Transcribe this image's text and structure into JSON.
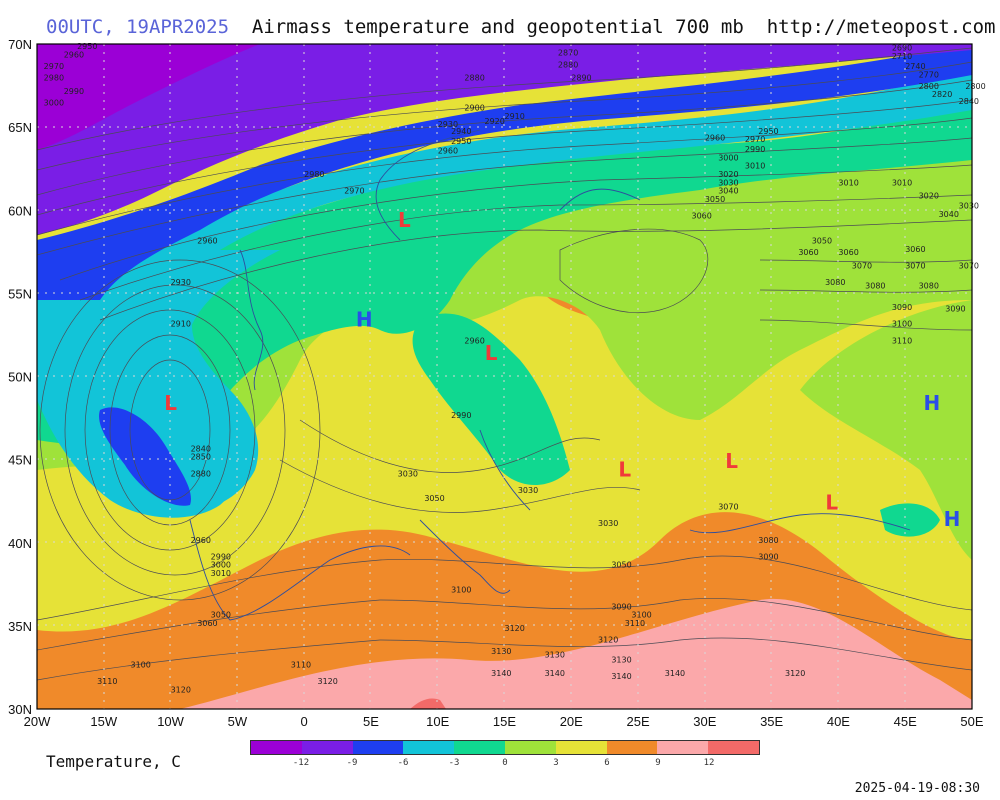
{
  "header": {
    "time_label": "00UTC, 19APR2025",
    "title": "Airmass temperature and geopotential 700 mb",
    "url": "http://meteopost.com"
  },
  "map": {
    "lat_labels": [
      "70N",
      "65N",
      "60N",
      "55N",
      "50N",
      "45N",
      "40N",
      "35N",
      "30N"
    ],
    "lon_labels": [
      "20W",
      "15W",
      "10W",
      "5W",
      "0",
      "5E",
      "10E",
      "15E",
      "20E",
      "25E",
      "30E",
      "35E",
      "40E",
      "45E",
      "50E"
    ],
    "pressure_centers": [
      {
        "type": "L",
        "label": "L",
        "lon": -10,
        "lat": 48
      },
      {
        "type": "L",
        "label": "L",
        "lon": 7.5,
        "lat": 59
      },
      {
        "type": "L",
        "label": "L",
        "lon": 14,
        "lat": 51
      },
      {
        "type": "L",
        "label": "L",
        "lon": 24,
        "lat": 44
      },
      {
        "type": "L",
        "label": "L",
        "lon": 32,
        "lat": 44.5
      },
      {
        "type": "L",
        "label": "L",
        "lon": 39.5,
        "lat": 42
      },
      {
        "type": "H",
        "label": "H",
        "lon": 4.5,
        "lat": 53
      },
      {
        "type": "H",
        "label": "H",
        "lon": 47,
        "lat": 48
      },
      {
        "type": "H",
        "label": "H",
        "lon": 48.5,
        "lat": 41
      }
    ],
    "contour_labels": [
      {
        "t": "2950",
        "lon": -17,
        "lat": 69.7
      },
      {
        "t": "2960",
        "lon": -18,
        "lat": 69.2
      },
      {
        "t": "2970",
        "lon": -19.5,
        "lat": 68.5
      },
      {
        "t": "2980",
        "lon": -19.5,
        "lat": 67.8
      },
      {
        "t": "2990",
        "lon": -18,
        "lat": 67
      },
      {
        "t": "3000",
        "lon": -19.5,
        "lat": 66.3
      },
      {
        "t": "2880",
        "lon": 12,
        "lat": 67.8
      },
      {
        "t": "2900",
        "lon": 12,
        "lat": 66
      },
      {
        "t": "2910",
        "lon": 15,
        "lat": 65.5
      },
      {
        "t": "2920",
        "lon": 13.5,
        "lat": 65.2
      },
      {
        "t": "2930",
        "lon": 10,
        "lat": 65
      },
      {
        "t": "2940",
        "lon": 11,
        "lat": 64.6
      },
      {
        "t": "2950",
        "lon": 11,
        "lat": 64
      },
      {
        "t": "2960",
        "lon": 10,
        "lat": 63.4
      },
      {
        "t": "2970",
        "lon": 3,
        "lat": 61
      },
      {
        "t": "2980",
        "lon": 0,
        "lat": 62
      },
      {
        "t": "2960",
        "lon": -8,
        "lat": 58
      },
      {
        "t": "2930",
        "lon": -10,
        "lat": 55.5
      },
      {
        "t": "2910",
        "lon": -10,
        "lat": 53
      },
      {
        "t": "2840",
        "lon": -8.5,
        "lat": 45.5
      },
      {
        "t": "2850",
        "lon": -8.5,
        "lat": 45
      },
      {
        "t": "2880",
        "lon": -8.5,
        "lat": 44
      },
      {
        "t": "2960",
        "lon": -8.5,
        "lat": 40
      },
      {
        "t": "2990",
        "lon": -7,
        "lat": 39
      },
      {
        "t": "3000",
        "lon": -7,
        "lat": 38.5
      },
      {
        "t": "3010",
        "lon": -7,
        "lat": 38
      },
      {
        "t": "3050",
        "lon": -7,
        "lat": 35.5
      },
      {
        "t": "3060",
        "lon": -8,
        "lat": 35
      },
      {
        "t": "3100",
        "lon": -13,
        "lat": 32.5
      },
      {
        "t": "3110",
        "lon": -15.5,
        "lat": 31.5
      },
      {
        "t": "3120",
        "lon": -10,
        "lat": 31
      },
      {
        "t": "3110",
        "lon": -1,
        "lat": 32.5
      },
      {
        "t": "3120",
        "lon": 1,
        "lat": 31.5
      },
      {
        "t": "2960",
        "lon": 12,
        "lat": 52
      },
      {
        "t": "2990",
        "lon": 11,
        "lat": 47.5
      },
      {
        "t": "3030",
        "lon": 7,
        "lat": 44
      },
      {
        "t": "3050",
        "lon": 9,
        "lat": 42.5
      },
      {
        "t": "3030",
        "lon": 16,
        "lat": 43
      },
      {
        "t": "3030",
        "lon": 22,
        "lat": 41
      },
      {
        "t": "3050",
        "lon": 23,
        "lat": 38.5
      },
      {
        "t": "3090",
        "lon": 23,
        "lat": 36
      },
      {
        "t": "3100",
        "lon": 24.5,
        "lat": 35.5
      },
      {
        "t": "3110",
        "lon": 24,
        "lat": 35
      },
      {
        "t": "3100",
        "lon": 11,
        "lat": 37
      },
      {
        "t": "3120",
        "lon": 15,
        "lat": 34.7
      },
      {
        "t": "3120",
        "lon": 22,
        "lat": 34
      },
      {
        "t": "3130",
        "lon": 14,
        "lat": 33.3
      },
      {
        "t": "3130",
        "lon": 18,
        "lat": 33.1
      },
      {
        "t": "3130",
        "lon": 23,
        "lat": 32.8
      },
      {
        "t": "3140",
        "lon": 14,
        "lat": 32
      },
      {
        "t": "3140",
        "lon": 18,
        "lat": 32
      },
      {
        "t": "3140",
        "lon": 23,
        "lat": 31.8
      },
      {
        "t": "3140",
        "lon": 27,
        "lat": 32
      },
      {
        "t": "3070",
        "lon": 31,
        "lat": 42
      },
      {
        "t": "3080",
        "lon": 34,
        "lat": 40
      },
      {
        "t": "3090",
        "lon": 34,
        "lat": 39
      },
      {
        "t": "3120",
        "lon": 36,
        "lat": 32
      },
      {
        "t": "3060",
        "lon": 29,
        "lat": 59.5
      },
      {
        "t": "3050",
        "lon": 30,
        "lat": 60.5
      },
      {
        "t": "3040",
        "lon": 31,
        "lat": 61
      },
      {
        "t": "3030",
        "lon": 31,
        "lat": 61.5
      },
      {
        "t": "3020",
        "lon": 31,
        "lat": 62
      },
      {
        "t": "3000",
        "lon": 31,
        "lat": 63
      },
      {
        "t": "3010",
        "lon": 33,
        "lat": 62.5
      },
      {
        "t": "2990",
        "lon": 33,
        "lat": 63.5
      },
      {
        "t": "2970",
        "lon": 33,
        "lat": 64.1
      },
      {
        "t": "2950",
        "lon": 34,
        "lat": 64.6
      },
      {
        "t": "2960",
        "lon": 30,
        "lat": 64.2
      },
      {
        "t": "3010",
        "lon": 40,
        "lat": 61.5
      },
      {
        "t": "3010",
        "lon": 44,
        "lat": 61.5
      },
      {
        "t": "3020",
        "lon": 46,
        "lat": 60.7
      },
      {
        "t": "3030",
        "lon": 49,
        "lat": 60.1
      },
      {
        "t": "3040",
        "lon": 47.5,
        "lat": 59.6
      },
      {
        "t": "3050",
        "lon": 38,
        "lat": 58
      },
      {
        "t": "3060",
        "lon": 37,
        "lat": 57.3
      },
      {
        "t": "3060",
        "lon": 40,
        "lat": 57.3
      },
      {
        "t": "3060",
        "lon": 45,
        "lat": 57.5
      },
      {
        "t": "3070",
        "lon": 41,
        "lat": 56.5
      },
      {
        "t": "3070",
        "lon": 45,
        "lat": 56.5
      },
      {
        "t": "3070",
        "lon": 49,
        "lat": 56.5
      },
      {
        "t": "3080",
        "lon": 39,
        "lat": 55.5
      },
      {
        "t": "3080",
        "lon": 42,
        "lat": 55.3
      },
      {
        "t": "3080",
        "lon": 46,
        "lat": 55.3
      },
      {
        "t": "3090",
        "lon": 44,
        "lat": 54
      },
      {
        "t": "3090",
        "lon": 48,
        "lat": 53.9
      },
      {
        "t": "3100",
        "lon": 44,
        "lat": 53
      },
      {
        "t": "3110",
        "lon": 44,
        "lat": 52
      },
      {
        "t": "2690",
        "lon": 44,
        "lat": 69.6
      },
      {
        "t": "2710",
        "lon": 44,
        "lat": 69.1
      },
      {
        "t": "2740",
        "lon": 45,
        "lat": 68.5
      },
      {
        "t": "2770",
        "lon": 46,
        "lat": 68
      },
      {
        "t": "2800",
        "lon": 46,
        "lat": 67.3
      },
      {
        "t": "2820",
        "lon": 47,
        "lat": 66.8
      },
      {
        "t": "2840",
        "lon": 49,
        "lat": 66.4
      },
      {
        "t": "2800",
        "lon": 49.5,
        "lat": 67.3
      },
      {
        "t": "2870",
        "lon": 19,
        "lat": 69.3
      },
      {
        "t": "2880",
        "lon": 19,
        "lat": 68.6
      },
      {
        "t": "2890",
        "lon": 20,
        "lat": 67.8
      }
    ]
  },
  "legend": {
    "title": "Temperature, C",
    "ticks": [
      "-12",
      "-9",
      "-6",
      "-3",
      "0",
      "3",
      "6",
      "9",
      "12"
    ],
    "colors": [
      "#9b00d6",
      "#7a1ee6",
      "#1e3ef0",
      "#12c4d8",
      "#10d890",
      "#9fe23a",
      "#e6e237",
      "#f08a2a",
      "#fba8aa",
      "#f36a68"
    ]
  },
  "timestamp": "2025-04-19-08:30"
}
